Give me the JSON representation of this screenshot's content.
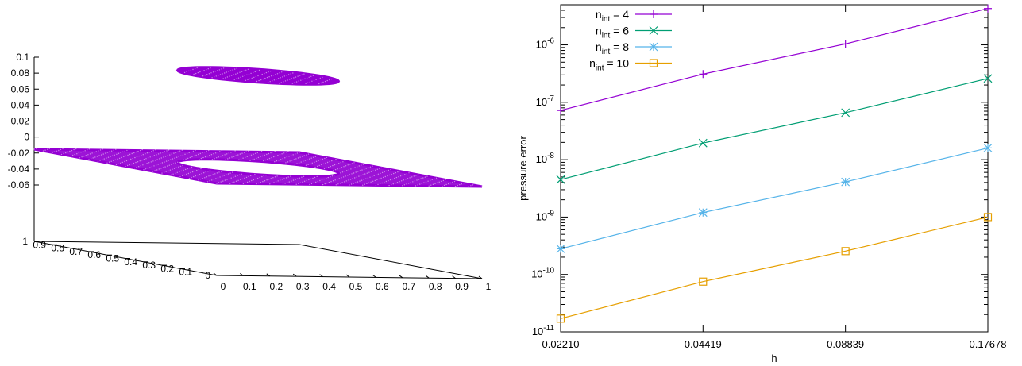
{
  "chart_data": [
    {
      "type": "scatter",
      "title": "",
      "z_ticks": [
        "0.1",
        "0.08",
        "0.06",
        "0.04",
        "0.02",
        "0",
        "-0.02",
        "-0.04",
        "-0.06"
      ],
      "x_ticks": [
        "0",
        "0.1",
        "0.2",
        "0.3",
        "0.4",
        "0.5",
        "0.6",
        "0.7",
        "0.8",
        "0.9",
        "1"
      ],
      "y_ticks": [
        "0",
        "0.1",
        "0.2",
        "0.3",
        "0.4",
        "0.5",
        "0.6",
        "0.7",
        "0.8",
        "0.9",
        "1"
      ],
      "xlim": [
        0,
        1
      ],
      "ylim": [
        0,
        1
      ],
      "zlim": [
        -0.06,
        0.1
      ],
      "series": [
        {
          "color": "#9400d3",
          "marker": "+",
          "regions": [
            {
              "region": "disk",
              "center": [
                0.5,
                0.5
              ],
              "radius": 0.25,
              "z": 0.075
            },
            {
              "region": "square-minus-disk",
              "x": [
                0,
                1
              ],
              "y": [
                0,
                1
              ],
              "hole_center": [
                0.5,
                0.5
              ],
              "hole_radius": 0.25,
              "z": -0.056
            }
          ]
        }
      ],
      "grid": false,
      "legend": "none"
    },
    {
      "type": "line",
      "title": "",
      "xlabel": "h",
      "ylabel": "pressure error",
      "xscale": "log",
      "yscale": "log",
      "x": [
        0.0221,
        0.04419,
        0.08839,
        0.17678
      ],
      "x_tick_labels": [
        "0.02210",
        "0.04419",
        "0.08839",
        "0.17678"
      ],
      "y_tick_labels": [
        {
          "base": "10",
          "exp": "-11",
          "value": 1e-11
        },
        {
          "base": "10",
          "exp": "-10",
          "value": 1e-10
        },
        {
          "base": "10",
          "exp": "-9",
          "value": 1e-09
        },
        {
          "base": "10",
          "exp": "-8",
          "value": 1e-08
        },
        {
          "base": "10",
          "exp": "-7",
          "value": 1e-07
        },
        {
          "base": "10",
          "exp": "-6",
          "value": 1e-06
        }
      ],
      "xlim": [
        0.0221,
        0.17678
      ],
      "ylim": [
        1e-11,
        5e-06
      ],
      "series": [
        {
          "label_main": "n",
          "label_sub": "int",
          "label_rest": " = 4",
          "color": "#9400d3",
          "marker": "plus",
          "values": [
            7.2e-08,
            3.1e-07,
            1.04e-06,
            4.3e-06
          ]
        },
        {
          "label_main": "n",
          "label_sub": "int",
          "label_rest": " = 6",
          "color": "#009e73",
          "marker": "cross",
          "values": [
            4.5e-09,
            1.95e-08,
            6.6e-08,
            2.6e-07
          ]
        },
        {
          "label_main": "n",
          "label_sub": "int",
          "label_rest": " = 8",
          "color": "#56b4e9",
          "marker": "star",
          "values": [
            2.8e-10,
            1.2e-09,
            4.1e-09,
            1.6e-08
          ]
        },
        {
          "label_main": "n",
          "label_sub": "int",
          "label_rest": " = 10",
          "color": "#e69f00",
          "marker": "square",
          "values": [
            1.7e-11,
            7.5e-11,
            2.55e-10,
            1e-09
          ]
        }
      ],
      "grid": false,
      "legend": "top-left"
    }
  ]
}
